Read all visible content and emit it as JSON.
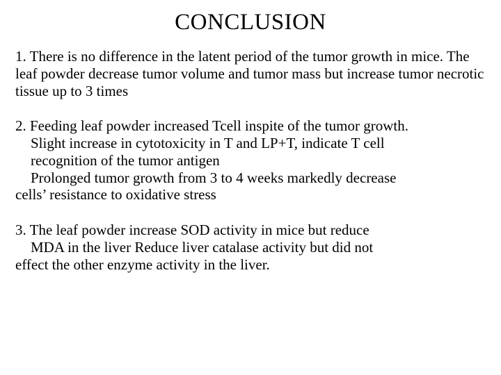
{
  "title": "CONCLUSION",
  "p1": "1. There is no difference in the latent period of  the tumor growth in mice. The leaf powder decrease tumor volume and tumor mass but increase tumor necrotic tissue up to 3 times",
  "p2": {
    "l1": "2. Feeding leaf powder increased Tcell inspite of the tumor growth.",
    "l2": "Slight increase in cytotoxicity in T and LP+T, indicate T cell",
    "l3": "recognition of the tumor antigen",
    "l4": "Prolonged tumor growth from 3 to 4 weeks markedly decrease",
    "l5": "cells’ resistance to oxidative stress"
  },
  "p3": {
    "l1": "3. The leaf powder increase SOD activity  in mice but reduce",
    "l2": "MDA in the liver    Reduce liver catalase activity but did not",
    "l3": "effect  the other enzyme activity in the liver."
  }
}
